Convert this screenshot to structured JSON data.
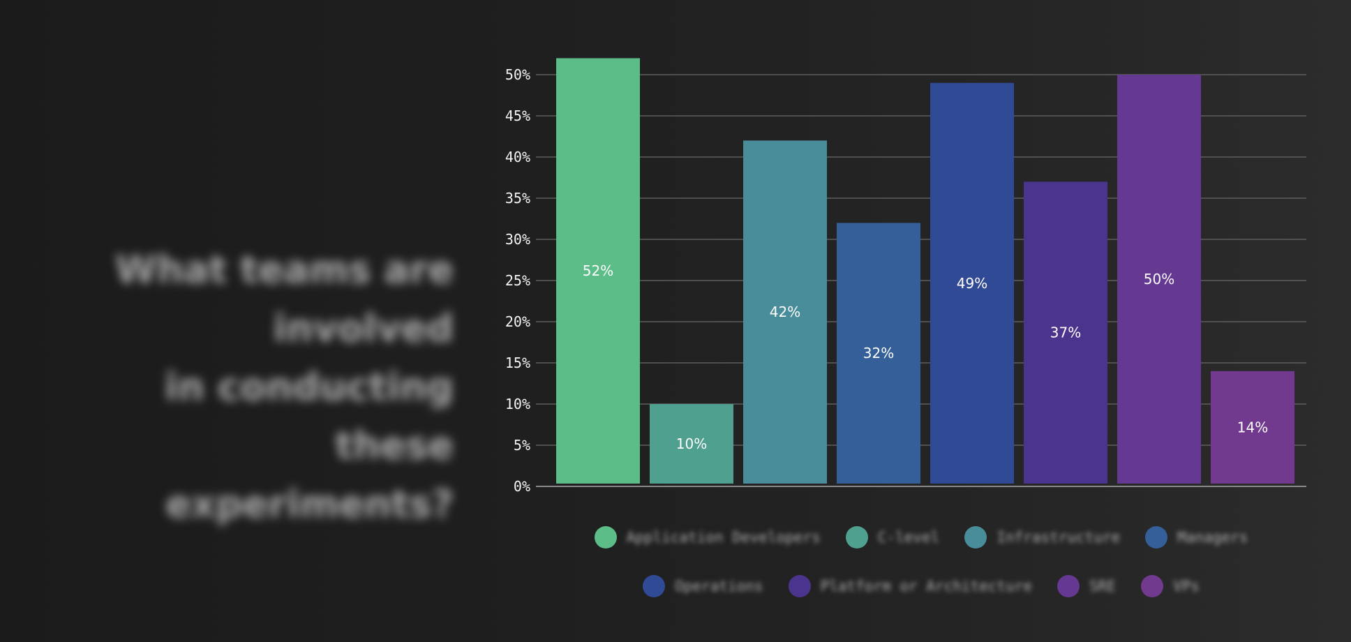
{
  "headline": {
    "lines": [
      "What teams are involved",
      "in conducting these",
      "experiments?"
    ]
  },
  "chart_data": {
    "type": "bar",
    "title": "",
    "xlabel": "",
    "ylabel": "",
    "ylim": [
      0,
      50
    ],
    "y_tick_step": 5,
    "y_tick_labels": [
      "0%",
      "5%",
      "10%",
      "15%",
      "20%",
      "25%",
      "30%",
      "35%",
      "40%",
      "45%",
      "50%"
    ],
    "grid": true,
    "legend_position": "bottom",
    "categories": [
      "Application Developers",
      "C-level",
      "Infrastructure",
      "Managers",
      "Operations",
      "Platform or Architecture",
      "SRE",
      "VPs"
    ],
    "values": [
      52,
      10,
      42,
      32,
      49,
      37,
      50,
      14
    ],
    "data_labels": [
      "52%",
      "10%",
      "42%",
      "32%",
      "49%",
      "37%",
      "50%",
      "14%"
    ],
    "colors": [
      "#5dbd88",
      "#4fa08f",
      "#4a8d9a",
      "#345f98",
      "#314a96",
      "#4b348e",
      "#653892",
      "#713a8f"
    ]
  },
  "legend": {
    "items": [
      {
        "label": "Application Developers",
        "color": "#5dbd88"
      },
      {
        "label": "C-level",
        "color": "#4fa08f"
      },
      {
        "label": "Infrastructure",
        "color": "#4a8d9a"
      },
      {
        "label": "Managers",
        "color": "#345f98"
      },
      {
        "label": "Operations",
        "color": "#314a96"
      },
      {
        "label": "Platform or Architecture",
        "color": "#4b348e"
      },
      {
        "label": "SRE",
        "color": "#653892"
      },
      {
        "label": "VPs",
        "color": "#713a8f"
      }
    ]
  }
}
